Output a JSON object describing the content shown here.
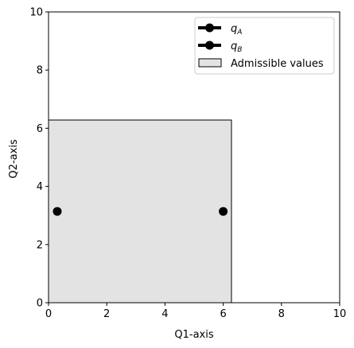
{
  "chart_data": {
    "type": "scatter",
    "xlabel": "Q1-axis",
    "ylabel": "Q2-axis",
    "xlim": [
      0,
      10
    ],
    "ylim": [
      0,
      10
    ],
    "xticks": [
      0,
      2,
      4,
      6,
      8,
      10
    ],
    "yticks": [
      0,
      2,
      4,
      6,
      8,
      10
    ],
    "grid": false,
    "legend_position": "top-right",
    "region": {
      "name": "Admissible values",
      "x": [
        0,
        6.283
      ],
      "y": [
        0,
        6.283
      ],
      "fill": "#e3e3e3",
      "edge": "#000000"
    },
    "series": [
      {
        "name": "q_A",
        "label_main": "q",
        "label_sub": "A",
        "x": 0.3,
        "y": 3.14,
        "color": "#000000"
      },
      {
        "name": "q_B",
        "label_main": "q",
        "label_sub": "B",
        "x": 6.0,
        "y": 3.14,
        "color": "#000000"
      }
    ]
  }
}
